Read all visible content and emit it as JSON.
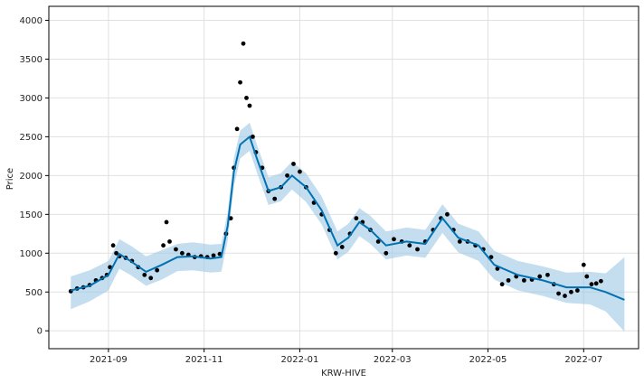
{
  "chart_data": {
    "type": "scatter",
    "title": "",
    "xlabel": "KRW-HIVE",
    "ylabel": "Price",
    "xlim": [
      "2021-07-25",
      "2022-08-05"
    ],
    "ylim": [
      -230,
      4180
    ],
    "grid": true,
    "x_ticks": [
      "2021-09",
      "2021-11",
      "2022-01",
      "2022-03",
      "2022-05",
      "2022-07"
    ],
    "x_tick_dates": [
      "2021-09-01",
      "2021-11-01",
      "2022-01-01",
      "2022-03-01",
      "2022-05-01",
      "2022-07-01"
    ],
    "y_ticks": [
      0,
      500,
      1000,
      1500,
      2000,
      2500,
      3000,
      3500,
      4000
    ],
    "colors": {
      "observed": "#000000",
      "forecast": "#0072B2",
      "interval": "#9dc8e6"
    },
    "series": [
      {
        "role": "observed",
        "points": [
          [
            "2021-08-08",
            510
          ],
          [
            "2021-08-12",
            545
          ],
          [
            "2021-08-16",
            560
          ],
          [
            "2021-08-20",
            590
          ],
          [
            "2021-08-24",
            650
          ],
          [
            "2021-08-28",
            680
          ],
          [
            "2021-08-31",
            720
          ],
          [
            "2021-09-02",
            820
          ],
          [
            "2021-09-04",
            1100
          ],
          [
            "2021-09-06",
            1000
          ],
          [
            "2021-09-08",
            960
          ],
          [
            "2021-09-12",
            940
          ],
          [
            "2021-09-16",
            900
          ],
          [
            "2021-09-20",
            820
          ],
          [
            "2021-09-24",
            720
          ],
          [
            "2021-09-28",
            680
          ],
          [
            "2021-10-02",
            780
          ],
          [
            "2021-10-06",
            1100
          ],
          [
            "2021-10-08",
            1400
          ],
          [
            "2021-10-10",
            1150
          ],
          [
            "2021-10-14",
            1050
          ],
          [
            "2021-10-18",
            1000
          ],
          [
            "2021-10-22",
            980
          ],
          [
            "2021-10-26",
            950
          ],
          [
            "2021-10-30",
            960
          ],
          [
            "2021-11-03",
            950
          ],
          [
            "2021-11-07",
            970
          ],
          [
            "2021-11-11",
            990
          ],
          [
            "2021-11-15",
            1250
          ],
          [
            "2021-11-18",
            1450
          ],
          [
            "2021-11-20",
            2100
          ],
          [
            "2021-11-22",
            2600
          ],
          [
            "2021-11-24",
            3200
          ],
          [
            "2021-11-26",
            3700
          ],
          [
            "2021-11-28",
            3000
          ],
          [
            "2021-11-30",
            2900
          ],
          [
            "2021-12-02",
            2500
          ],
          [
            "2021-12-04",
            2300
          ],
          [
            "2021-12-08",
            2100
          ],
          [
            "2021-12-12",
            1800
          ],
          [
            "2021-12-16",
            1700
          ],
          [
            "2021-12-20",
            1850
          ],
          [
            "2021-12-24",
            2000
          ],
          [
            "2021-12-28",
            2150
          ],
          [
            "2022-01-01",
            2050
          ],
          [
            "2022-01-05",
            1850
          ],
          [
            "2022-01-10",
            1650
          ],
          [
            "2022-01-15",
            1500
          ],
          [
            "2022-01-20",
            1300
          ],
          [
            "2022-01-24",
            1000
          ],
          [
            "2022-01-28",
            1080
          ],
          [
            "2022-02-02",
            1250
          ],
          [
            "2022-02-06",
            1450
          ],
          [
            "2022-02-10",
            1400
          ],
          [
            "2022-02-15",
            1300
          ],
          [
            "2022-02-20",
            1150
          ],
          [
            "2022-02-25",
            1000
          ],
          [
            "2022-03-02",
            1180
          ],
          [
            "2022-03-07",
            1150
          ],
          [
            "2022-03-12",
            1100
          ],
          [
            "2022-03-17",
            1050
          ],
          [
            "2022-03-22",
            1150
          ],
          [
            "2022-03-27",
            1300
          ],
          [
            "2022-04-01",
            1450
          ],
          [
            "2022-04-05",
            1500
          ],
          [
            "2022-04-09",
            1300
          ],
          [
            "2022-04-13",
            1150
          ],
          [
            "2022-04-18",
            1150
          ],
          [
            "2022-04-23",
            1100
          ],
          [
            "2022-04-28",
            1050
          ],
          [
            "2022-05-03",
            950
          ],
          [
            "2022-05-07",
            800
          ],
          [
            "2022-05-10",
            600
          ],
          [
            "2022-05-14",
            650
          ],
          [
            "2022-05-19",
            700
          ],
          [
            "2022-05-24",
            650
          ],
          [
            "2022-05-29",
            660
          ],
          [
            "2022-06-03",
            700
          ],
          [
            "2022-06-08",
            720
          ],
          [
            "2022-06-12",
            600
          ],
          [
            "2022-06-15",
            480
          ],
          [
            "2022-06-19",
            450
          ],
          [
            "2022-06-23",
            500
          ],
          [
            "2022-06-27",
            520
          ],
          [
            "2022-07-01",
            850
          ],
          [
            "2022-07-03",
            700
          ],
          [
            "2022-07-06",
            600
          ],
          [
            "2022-07-09",
            610
          ],
          [
            "2022-07-12",
            640
          ]
        ]
      },
      {
        "role": "forecast",
        "points": [
          [
            "2021-08-08",
            520
          ],
          [
            "2021-08-20",
            580
          ],
          [
            "2021-09-01",
            720
          ],
          [
            "2021-09-08",
            990
          ],
          [
            "2021-09-15",
            900
          ],
          [
            "2021-09-25",
            760
          ],
          [
            "2021-10-05",
            850
          ],
          [
            "2021-10-15",
            950
          ],
          [
            "2021-10-25",
            960
          ],
          [
            "2021-11-05",
            930
          ],
          [
            "2021-11-12",
            950
          ],
          [
            "2021-11-16",
            1350
          ],
          [
            "2021-11-20",
            2050
          ],
          [
            "2021-11-24",
            2400
          ],
          [
            "2021-11-30",
            2500
          ],
          [
            "2021-12-05",
            2200
          ],
          [
            "2021-12-12",
            1800
          ],
          [
            "2021-12-20",
            1850
          ],
          [
            "2021-12-27",
            2000
          ],
          [
            "2022-01-05",
            1850
          ],
          [
            "2022-01-15",
            1550
          ],
          [
            "2022-01-25",
            1100
          ],
          [
            "2022-02-01",
            1200
          ],
          [
            "2022-02-08",
            1400
          ],
          [
            "2022-02-15",
            1300
          ],
          [
            "2022-02-25",
            1100
          ],
          [
            "2022-03-10",
            1150
          ],
          [
            "2022-03-22",
            1120
          ],
          [
            "2022-04-02",
            1450
          ],
          [
            "2022-04-12",
            1200
          ],
          [
            "2022-04-25",
            1100
          ],
          [
            "2022-05-05",
            850
          ],
          [
            "2022-05-20",
            720
          ],
          [
            "2022-06-05",
            650
          ],
          [
            "2022-06-20",
            560
          ],
          [
            "2022-07-05",
            560
          ],
          [
            "2022-07-15",
            500
          ],
          [
            "2022-07-27",
            400
          ]
        ]
      },
      {
        "role": "interval",
        "upper": [
          [
            "2021-08-08",
            700
          ],
          [
            "2021-08-20",
            780
          ],
          [
            "2021-09-01",
            900
          ],
          [
            "2021-09-08",
            1180
          ],
          [
            "2021-09-15",
            1100
          ],
          [
            "2021-09-25",
            960
          ],
          [
            "2021-10-05",
            1040
          ],
          [
            "2021-10-15",
            1120
          ],
          [
            "2021-10-25",
            1140
          ],
          [
            "2021-11-05",
            1110
          ],
          [
            "2021-11-12",
            1120
          ],
          [
            "2021-11-16",
            1530
          ],
          [
            "2021-11-20",
            2230
          ],
          [
            "2021-11-24",
            2580
          ],
          [
            "2021-11-30",
            2680
          ],
          [
            "2021-12-05",
            2380
          ],
          [
            "2021-12-12",
            1980
          ],
          [
            "2021-12-20",
            2030
          ],
          [
            "2021-12-27",
            2180
          ],
          [
            "2022-01-05",
            2030
          ],
          [
            "2022-01-15",
            1730
          ],
          [
            "2022-01-25",
            1280
          ],
          [
            "2022-02-01",
            1380
          ],
          [
            "2022-02-08",
            1580
          ],
          [
            "2022-02-15",
            1480
          ],
          [
            "2022-02-25",
            1280
          ],
          [
            "2022-03-10",
            1330
          ],
          [
            "2022-03-22",
            1300
          ],
          [
            "2022-04-02",
            1630
          ],
          [
            "2022-04-12",
            1380
          ],
          [
            "2022-04-25",
            1280
          ],
          [
            "2022-05-05",
            1030
          ],
          [
            "2022-05-20",
            900
          ],
          [
            "2022-06-05",
            830
          ],
          [
            "2022-06-20",
            750
          ],
          [
            "2022-07-05",
            760
          ],
          [
            "2022-07-15",
            740
          ],
          [
            "2022-07-27",
            950
          ]
        ],
        "lower": [
          [
            "2021-08-08",
            280
          ],
          [
            "2021-08-20",
            380
          ],
          [
            "2021-09-01",
            520
          ],
          [
            "2021-09-08",
            800
          ],
          [
            "2021-09-15",
            720
          ],
          [
            "2021-09-25",
            580
          ],
          [
            "2021-10-05",
            660
          ],
          [
            "2021-10-15",
            770
          ],
          [
            "2021-10-25",
            780
          ],
          [
            "2021-11-05",
            750
          ],
          [
            "2021-11-12",
            760
          ],
          [
            "2021-11-16",
            1160
          ],
          [
            "2021-11-20",
            1860
          ],
          [
            "2021-11-24",
            2220
          ],
          [
            "2021-11-30",
            2320
          ],
          [
            "2021-12-05",
            2020
          ],
          [
            "2021-12-12",
            1620
          ],
          [
            "2021-12-20",
            1670
          ],
          [
            "2021-12-27",
            1820
          ],
          [
            "2022-01-05",
            1660
          ],
          [
            "2022-01-15",
            1370
          ],
          [
            "2022-01-25",
            920
          ],
          [
            "2022-02-01",
            1020
          ],
          [
            "2022-02-08",
            1220
          ],
          [
            "2022-02-15",
            1120
          ],
          [
            "2022-02-25",
            920
          ],
          [
            "2022-03-10",
            970
          ],
          [
            "2022-03-22",
            940
          ],
          [
            "2022-04-02",
            1260
          ],
          [
            "2022-04-12",
            1010
          ],
          [
            "2022-04-25",
            900
          ],
          [
            "2022-05-05",
            660
          ],
          [
            "2022-05-20",
            520
          ],
          [
            "2022-06-05",
            450
          ],
          [
            "2022-06-20",
            360
          ],
          [
            "2022-07-05",
            340
          ],
          [
            "2022-07-15",
            250
          ],
          [
            "2022-07-27",
            -10
          ]
        ]
      }
    ]
  }
}
